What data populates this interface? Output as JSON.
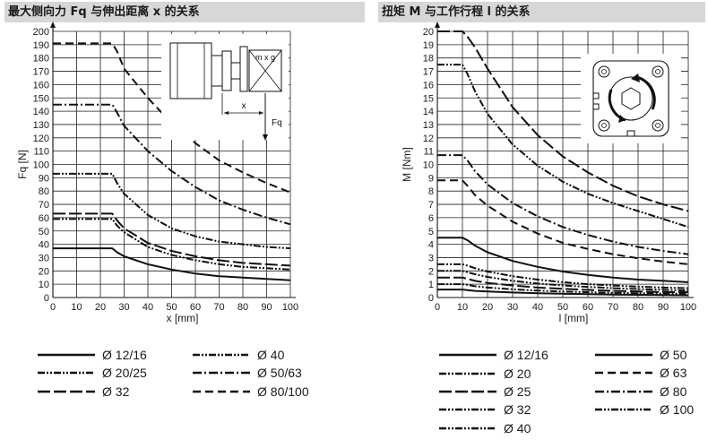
{
  "chart_data": [
    {
      "type": "line",
      "title": "最大侧向力 Fq 与伸出距离 x 的关系",
      "xlabel": "x [mm]",
      "ylabel": "Fq [N]",
      "xlim": [
        0,
        100
      ],
      "ylim": [
        0,
        200
      ],
      "xticks": [
        "0",
        "10",
        "20",
        "30",
        "40",
        "50",
        "60",
        "70",
        "80",
        "90",
        "100"
      ],
      "yticks": [
        "0",
        "10",
        "20",
        "30",
        "40",
        "50",
        "60",
        "70",
        "80",
        "90",
        "100",
        "110",
        "120",
        "130",
        "140",
        "150",
        "160",
        "170",
        "180",
        "190",
        "200"
      ],
      "grid": true,
      "legend_position": "bottom",
      "inset": {
        "labels": [
          "m x g",
          "x",
          "Fq"
        ]
      },
      "series": [
        {
          "name": "Ø 12/16",
          "dash": "solid",
          "x": [
            0,
            25,
            27,
            30,
            40,
            50,
            60,
            70,
            80,
            90,
            100
          ],
          "y": [
            37,
            37,
            34,
            31,
            25,
            21,
            18,
            16,
            15,
            14,
            13
          ]
        },
        {
          "name": "Ø 20/25",
          "dash": "dashdotdot",
          "x": [
            0,
            25,
            27,
            30,
            40,
            50,
            60,
            70,
            80,
            90,
            100
          ],
          "y": [
            59,
            59,
            54,
            49,
            38,
            32,
            28,
            25,
            23,
            22,
            21
          ]
        },
        {
          "name": "Ø 32",
          "dash": "longdash",
          "x": [
            0,
            25,
            27,
            30,
            40,
            50,
            60,
            70,
            80,
            90,
            100
          ],
          "y": [
            63,
            63,
            58,
            52,
            41,
            35,
            31,
            28,
            26,
            25,
            24
          ]
        },
        {
          "name": "Ø 40",
          "dash": "dashdotdot",
          "x": [
            0,
            25,
            27,
            30,
            40,
            50,
            60,
            70,
            80,
            90,
            100
          ],
          "y": [
            93,
            93,
            86,
            78,
            62,
            52,
            46,
            42,
            40,
            38,
            37
          ]
        },
        {
          "name": "Ø 50/63",
          "dash": "dashdot",
          "x": [
            0,
            25,
            27,
            30,
            40,
            50,
            60,
            70,
            80,
            90,
            100
          ],
          "y": [
            145,
            145,
            139,
            129,
            110,
            95,
            83,
            73,
            66,
            60,
            55
          ]
        },
        {
          "name": "Ø 80/100",
          "dash": "dash",
          "x": [
            0,
            25,
            27,
            30,
            40,
            50,
            60,
            70,
            80,
            90,
            100
          ],
          "y": [
            191,
            191,
            185,
            172,
            150,
            131,
            116,
            103,
            94,
            86,
            79
          ]
        }
      ]
    },
    {
      "type": "line",
      "title": "扭矩 M 与工作行程 l 的关系",
      "xlabel": "l [mm]",
      "ylabel": "M [Nm]",
      "xlim": [
        0,
        100
      ],
      "ylim": [
        0,
        20
      ],
      "xticks": [
        "0",
        "10",
        "20",
        "30",
        "40",
        "50",
        "60",
        "70",
        "80",
        "90",
        "100"
      ],
      "yticks": [
        "0",
        "1",
        "2",
        "3",
        "4",
        "5",
        "6",
        "7",
        "8",
        "9",
        "10",
        "11",
        "12",
        "13",
        "14",
        "15",
        "16",
        "17",
        "18",
        "19",
        "20"
      ],
      "grid": true,
      "legend_position": "bottom",
      "series": [
        {
          "name": "Ø 12/16",
          "dash": "solid",
          "x": [
            0,
            10,
            12,
            15,
            20,
            30,
            40,
            50,
            60,
            70,
            80,
            90,
            100
          ],
          "y": [
            0.6,
            0.6,
            0.55,
            0.5,
            0.45,
            0.38,
            0.32,
            0.28,
            0.25,
            0.22,
            0.2,
            0.18,
            0.17
          ]
        },
        {
          "name": "Ø 20",
          "dash": "dashdotdot",
          "x": [
            0,
            10,
            12,
            15,
            20,
            30,
            40,
            50,
            60,
            70,
            80,
            90,
            100
          ],
          "y": [
            1.0,
            1.0,
            0.95,
            0.85,
            0.75,
            0.62,
            0.52,
            0.45,
            0.4,
            0.35,
            0.32,
            0.3,
            0.28
          ]
        },
        {
          "name": "Ø 25",
          "dash": "longdash",
          "x": [
            0,
            10,
            12,
            15,
            20,
            30,
            40,
            50,
            60,
            70,
            80,
            90,
            100
          ],
          "y": [
            1.5,
            1.5,
            1.4,
            1.25,
            1.1,
            0.9,
            0.75,
            0.65,
            0.57,
            0.5,
            0.46,
            0.42,
            0.4
          ]
        },
        {
          "name": "Ø 32",
          "dash": "dashdotdot",
          "x": [
            0,
            10,
            12,
            15,
            20,
            30,
            40,
            50,
            60,
            70,
            80,
            90,
            100
          ],
          "y": [
            2.0,
            2.0,
            1.9,
            1.75,
            1.55,
            1.25,
            1.05,
            0.9,
            0.8,
            0.7,
            0.63,
            0.58,
            0.53
          ]
        },
        {
          "name": "Ø 40",
          "dash": "dashdotdot",
          "x": [
            0,
            10,
            12,
            15,
            20,
            30,
            40,
            50,
            60,
            70,
            80,
            90,
            100
          ],
          "y": [
            2.5,
            2.5,
            2.4,
            2.2,
            1.95,
            1.6,
            1.35,
            1.15,
            1.0,
            0.9,
            0.82,
            0.75,
            0.7
          ]
        },
        {
          "name": "Ø 50",
          "dash": "solid",
          "x": [
            0,
            10,
            12,
            15,
            20,
            30,
            40,
            50,
            60,
            70,
            80,
            90,
            100
          ],
          "y": [
            4.5,
            4.5,
            4.3,
            3.9,
            3.4,
            2.75,
            2.3,
            1.95,
            1.7,
            1.5,
            1.35,
            1.25,
            1.15
          ]
        },
        {
          "name": "Ø 63",
          "dash": "dash",
          "x": [
            0,
            10,
            12,
            15,
            20,
            30,
            40,
            50,
            60,
            70,
            80,
            90,
            100
          ],
          "y": [
            8.8,
            8.8,
            8.4,
            7.7,
            6.9,
            5.7,
            4.8,
            4.1,
            3.65,
            3.25,
            2.95,
            2.7,
            2.5
          ]
        },
        {
          "name": "Ø 80",
          "dash": "dashdot",
          "x": [
            0,
            10,
            12,
            15,
            20,
            30,
            40,
            50,
            60,
            70,
            80,
            90,
            100
          ],
          "y": [
            10.7,
            10.7,
            10.3,
            9.5,
            8.5,
            7.1,
            6.1,
            5.3,
            4.7,
            4.2,
            3.8,
            3.5,
            3.25
          ]
        },
        {
          "name": "Ø 100",
          "dash": "dashdotdot",
          "x": [
            0,
            10,
            12,
            15,
            20,
            30,
            40,
            50,
            60,
            70,
            80,
            90,
            100
          ],
          "y": [
            17.5,
            17.5,
            16.8,
            15.5,
            13.8,
            11.5,
            9.9,
            8.7,
            7.8,
            7.1,
            6.5,
            5.9,
            5.3
          ]
        },
        {
          "name": "",
          "dash": "longdash",
          "x": [
            0,
            10,
            12,
            15,
            20,
            30,
            40,
            50,
            60,
            70,
            80,
            90,
            100
          ],
          "y": [
            20,
            20,
            19.6,
            18.8,
            17.2,
            14.3,
            12.2,
            10.6,
            9.4,
            8.4,
            7.6,
            7.0,
            6.5
          ]
        }
      ]
    }
  ]
}
